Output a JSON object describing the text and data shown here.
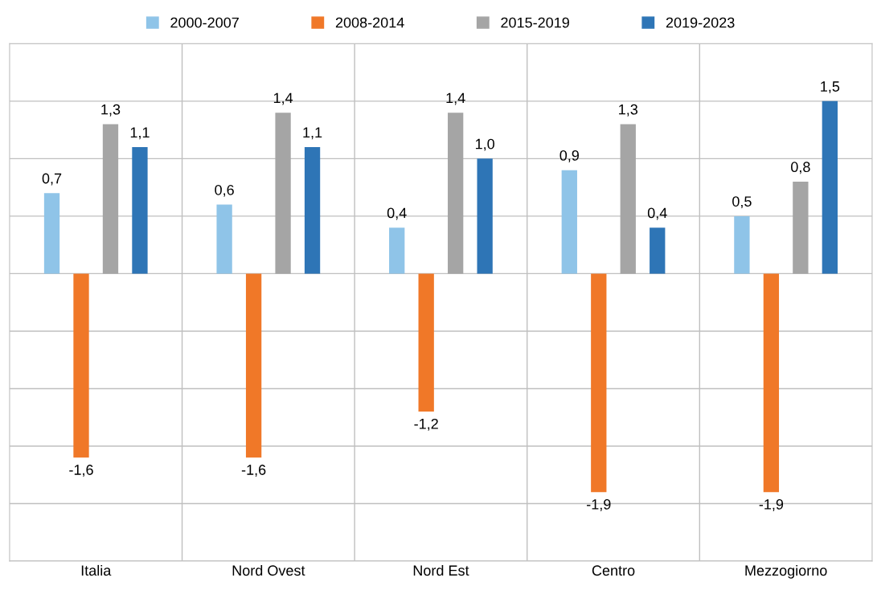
{
  "chart_data": {
    "type": "bar",
    "categories": [
      "Italia",
      "Nord Ovest",
      "Nord Est",
      "Centro",
      "Mezzogiorno"
    ],
    "series": [
      {
        "name": "2000-2007",
        "color": "#8fc4e8",
        "values": [
          0.7,
          0.6,
          0.4,
          0.9,
          0.5
        ],
        "value_labels": [
          "0,7",
          "0,6",
          "0,4",
          "0,9",
          "0,5"
        ]
      },
      {
        "name": "2008-2014",
        "color": "#f07828",
        "values": [
          -1.6,
          -1.6,
          -1.2,
          -1.9,
          -1.9
        ],
        "value_labels": [
          "-1,6",
          "-1,6",
          "-1,2",
          "-1,9",
          "-1,9"
        ]
      },
      {
        "name": "2015-2019",
        "color": "#a5a5a5",
        "values": [
          1.3,
          1.4,
          1.4,
          1.3,
          0.8
        ],
        "value_labels": [
          "1,3",
          "1,4",
          "1,4",
          "1,3",
          "0,8"
        ]
      },
      {
        "name": "2019-2023",
        "color": "#2e75b6",
        "values": [
          1.1,
          1.1,
          1.0,
          0.4,
          1.5
        ],
        "value_labels": [
          "1,1",
          "1,1",
          "1,0",
          "0,4",
          "1,5"
        ]
      }
    ],
    "ylim": [
      -2.5,
      2.0
    ],
    "yticks": [
      {
        "value": -2.5,
        "label": null
      },
      {
        "value": -2.0,
        "label": null
      },
      {
        "value": -1.5,
        "label": null
      },
      {
        "value": -1.0,
        "label": null
      },
      {
        "value": -0.5,
        "label": null
      },
      {
        "value": 0,
        "label": null
      },
      {
        "value": 0.5,
        "label": null
      },
      {
        "value": 1.0,
        "label": null
      },
      {
        "value": 1.5,
        "label": null
      },
      {
        "value": 2.0,
        "label": null
      }
    ],
    "tick_labels": "x",
    "grid": true,
    "legend": "top"
  }
}
